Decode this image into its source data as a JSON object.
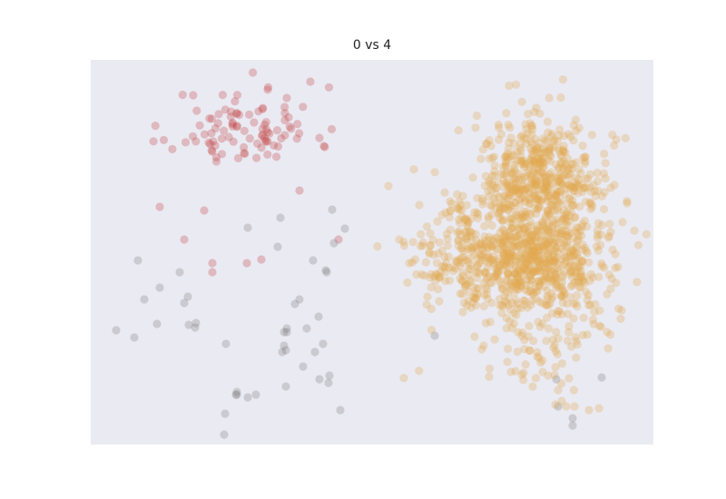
{
  "chart_data": {
    "type": "scatter",
    "title": "0 vs 4",
    "xlabel": "",
    "ylabel": "",
    "xlim": [
      0,
      620
    ],
    "ylim": [
      0,
      424
    ],
    "grid": false,
    "axes_visible": false,
    "background_color": "#eaeaf2",
    "series": [
      {
        "color": "#c4494a",
        "opacity": 0.3,
        "clusters": [
          {
            "center": [
              170,
              350
            ],
            "spread": [
              40,
              22
            ],
            "count": 95,
            "seed": 11
          }
        ],
        "points": [
          [
            76,
            262
          ],
          [
            103,
            226
          ],
          [
            125,
            258
          ],
          [
            134,
            190
          ],
          [
            134,
            200
          ],
          [
            172,
            200
          ],
          [
            188,
            204
          ],
          [
            216,
            382
          ],
          [
            230,
            280
          ],
          [
            242,
            400
          ],
          [
            252,
            338
          ],
          [
            273,
            226
          ]
        ]
      },
      {
        "color": "#808080",
        "opacity": 0.3,
        "points": [
          [
            28,
            126
          ],
          [
            48,
            118
          ],
          [
            52,
            203
          ],
          [
            59,
            160
          ],
          [
            73,
            133
          ],
          [
            76,
            173
          ],
          [
            98,
            190
          ],
          [
            103,
            156
          ],
          [
            107,
            163
          ],
          [
            108,
            132
          ],
          [
            115,
            129
          ],
          [
            116,
            134
          ],
          [
            149,
            111
          ],
          [
            161,
            55
          ],
          [
            173,
            239
          ],
          [
            147,
            11
          ],
          [
            148,
            34
          ],
          [
            160,
            55
          ],
          [
            161,
            58
          ],
          [
            173,
            52
          ],
          [
            182,
            55
          ],
          [
            206,
            218
          ],
          [
            215,
            64
          ],
          [
            215,
            104
          ],
          [
            216,
            124
          ],
          [
            216,
            128
          ],
          [
            245,
            203
          ],
          [
            259,
            192
          ],
          [
            268,
            222
          ],
          [
            266,
            259
          ],
          [
            280,
            238
          ],
          [
            209,
            250
          ],
          [
            213,
            124
          ],
          [
            211,
            102
          ],
          [
            213,
            109
          ],
          [
            225,
            155
          ],
          [
            230,
            160
          ],
          [
            234,
            86
          ],
          [
            238,
            128
          ],
          [
            247,
            102
          ],
          [
            251,
            141
          ],
          [
            256,
            111
          ],
          [
            260,
            190
          ],
          [
            252,
            72
          ],
          [
            262,
            68
          ],
          [
            263,
            76
          ],
          [
            275,
            38
          ],
          [
            379,
            120
          ],
          [
            513,
            72
          ],
          [
            515,
            42
          ],
          [
            531,
            29
          ],
          [
            531,
            21
          ],
          [
            563,
            74
          ]
        ]
      },
      {
        "color": "#e0aa4e",
        "opacity": 0.3,
        "clusters": [
          {
            "center": [
              495,
              290
            ],
            "spread": [
              34,
              34
            ],
            "count": 520,
            "seed": 21
          },
          {
            "center": [
              440,
              208
            ],
            "spread": [
              40,
              26
            ],
            "count": 340,
            "seed": 37
          },
          {
            "center": [
              505,
              195
            ],
            "spread": [
              36,
              28
            ],
            "count": 280,
            "seed": 53
          },
          {
            "center": [
              490,
              205
            ],
            "spread": [
              60,
              60
            ],
            "count": 220,
            "seed": 71
          },
          {
            "center": [
              500,
              110
            ],
            "spread": [
              25,
              22
            ],
            "count": 40,
            "seed": 91
          }
        ],
        "points": [
          [
            328,
            285
          ],
          [
            340,
            226
          ],
          [
            351,
            200
          ],
          [
            362,
            264
          ],
          [
            371,
            163
          ],
          [
            384,
            158
          ],
          [
            390,
            195
          ],
          [
            423,
            119
          ],
          [
            431,
            105
          ],
          [
            433,
            109
          ],
          [
            463,
            80
          ],
          [
            468,
            81
          ],
          [
            475,
            77
          ],
          [
            477,
            79
          ],
          [
            487,
            64
          ],
          [
            498,
            80
          ],
          [
            504,
            76
          ],
          [
            512,
            44
          ],
          [
            515,
            60
          ],
          [
            519,
            48
          ],
          [
            524,
            42
          ],
          [
            533,
            42
          ],
          [
            549,
            38
          ],
          [
            560,
            40
          ],
          [
            569,
            124
          ],
          [
            577,
            286
          ],
          [
            585,
            148
          ],
          [
            591,
            266
          ]
        ]
      }
    ]
  }
}
